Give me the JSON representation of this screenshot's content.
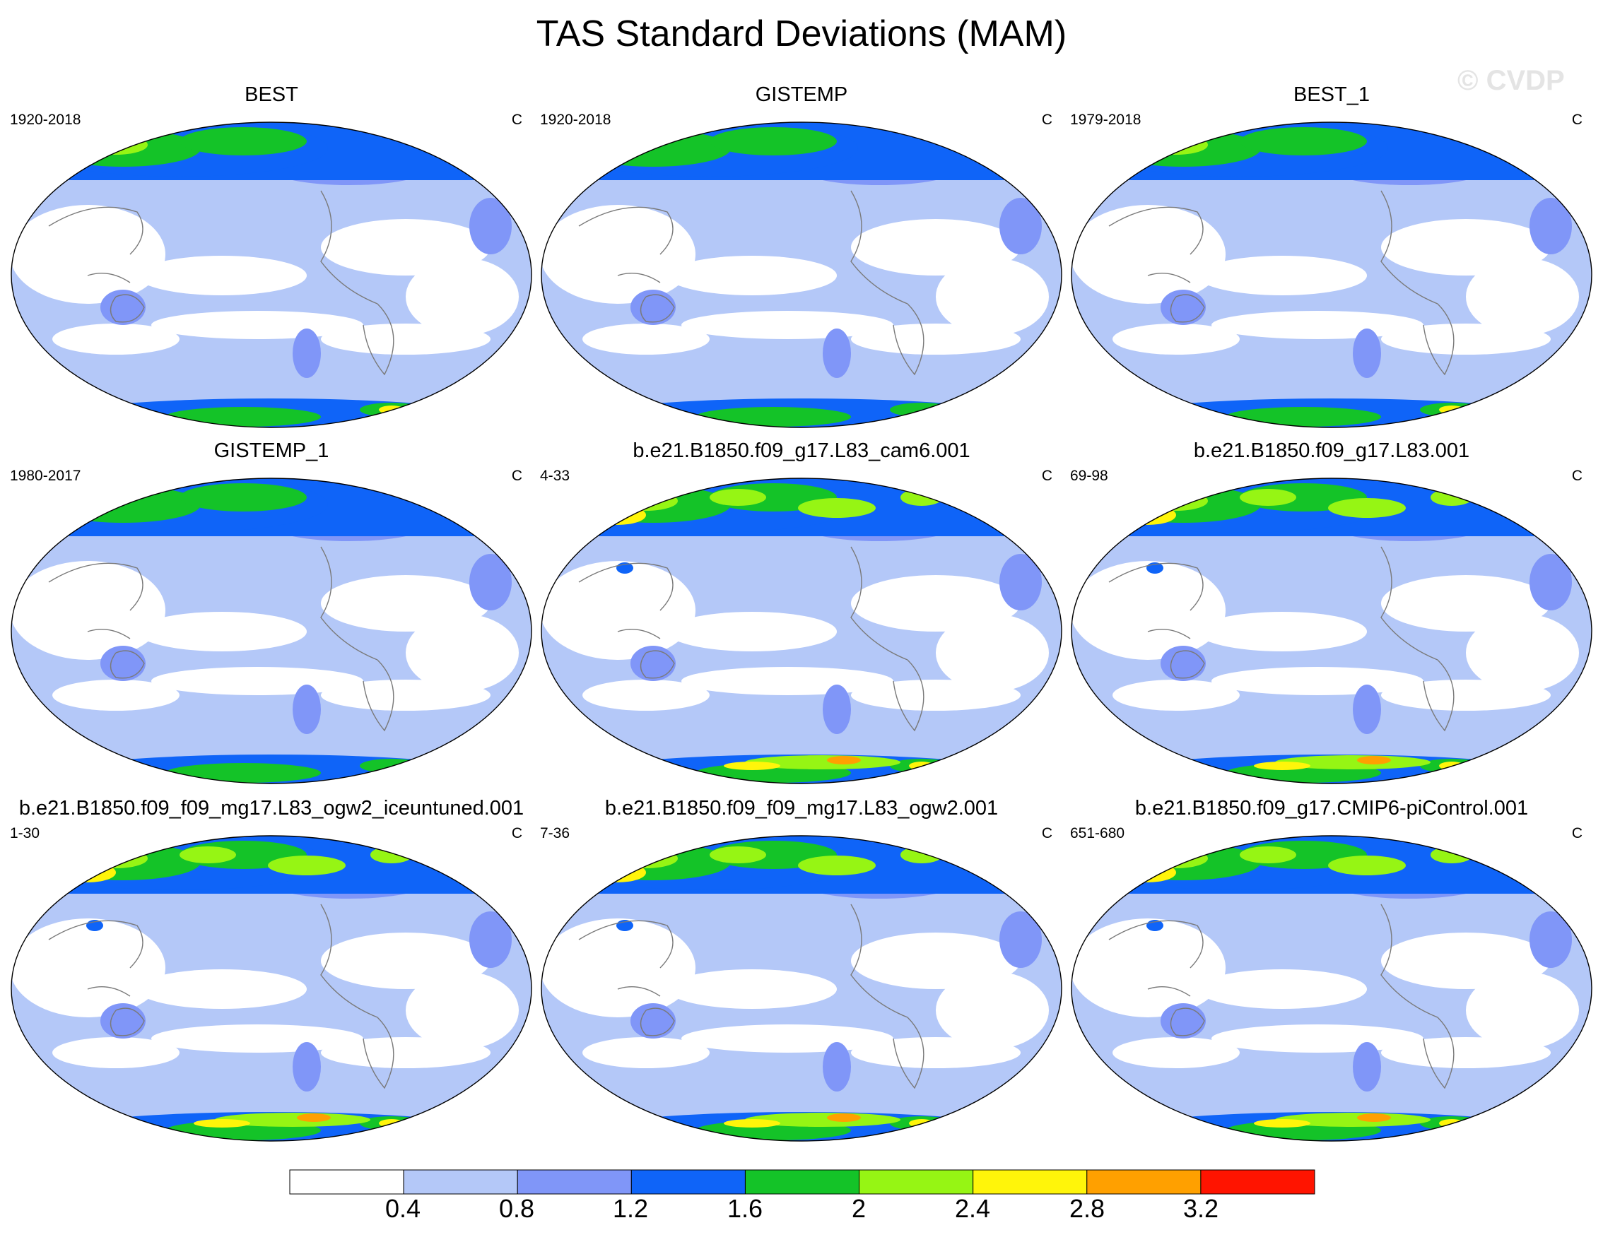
{
  "title": "TAS Standard Deviations (MAM)",
  "watermark": "© CVDP",
  "panels": [
    {
      "title": "BEST",
      "years": "1920-2018",
      "units": "C"
    },
    {
      "title": "GISTEMP",
      "years": "1920-2018",
      "units": "C"
    },
    {
      "title": "BEST_1",
      "years": "1979-2018",
      "units": "C"
    },
    {
      "title": "GISTEMP_1",
      "years": "1980-2017",
      "units": "C"
    },
    {
      "title": "b.e21.B1850.f09_g17.L83_cam6.001",
      "years": "4-33",
      "units": "C"
    },
    {
      "title": "b.e21.B1850.f09_g17.L83.001",
      "years": "69-98",
      "units": "C"
    },
    {
      "title": "b.e21.B1850.f09_f09_mg17.L83_ogw2_iceuntuned.001",
      "years": "1-30",
      "units": "C"
    },
    {
      "title": "b.e21.B1850.f09_f09_mg17.L83_ogw2.001",
      "years": "7-36",
      "units": "C"
    },
    {
      "title": "b.e21.B1850.f09_g17.CMIP6-piControl.001",
      "years": "651-680",
      "units": "C"
    }
  ],
  "colorbar": {
    "levels": [
      "0.4",
      "0.8",
      "1.2",
      "1.6",
      "2",
      "2.4",
      "2.8",
      "3.2"
    ],
    "colors": [
      "#ffffff",
      "#b4c8f8",
      "#8096f8",
      "#0f64f8",
      "#14c328",
      "#96f514",
      "#fff50a",
      "#ffa000",
      "#ff1400"
    ]
  }
}
